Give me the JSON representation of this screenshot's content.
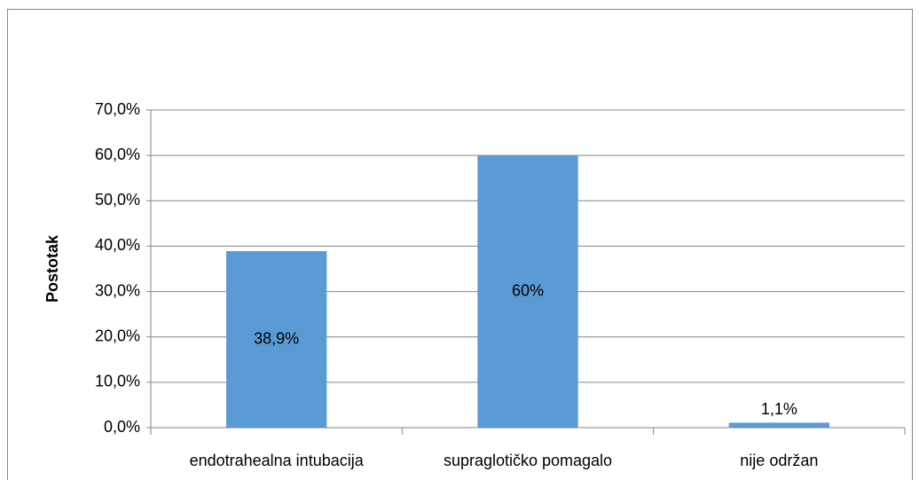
{
  "chart_data": {
    "type": "bar",
    "y_label": "Postotak",
    "categories": [
      "endotrahealna intubacija",
      "supraglotičko pomagalo",
      "nije održan"
    ],
    "values": [
      38.9,
      60,
      1.1
    ],
    "value_labels": [
      "38,9%",
      "60%",
      "1,1%"
    ],
    "color": "#5b9bd5",
    "ylim": [
      0,
      70
    ],
    "yticks": [
      {
        "value": 0,
        "label": "0,0%"
      },
      {
        "value": 10,
        "label": "10,0%"
      },
      {
        "value": 20,
        "label": "20,0%"
      },
      {
        "value": 30,
        "label": "30,0%"
      },
      {
        "value": 40,
        "label": "40,0%"
      },
      {
        "value": 50,
        "label": "50,0%"
      },
      {
        "value": 60,
        "label": "60,0%"
      },
      {
        "value": 70,
        "label": "70,0%"
      }
    ],
    "grid": true
  }
}
